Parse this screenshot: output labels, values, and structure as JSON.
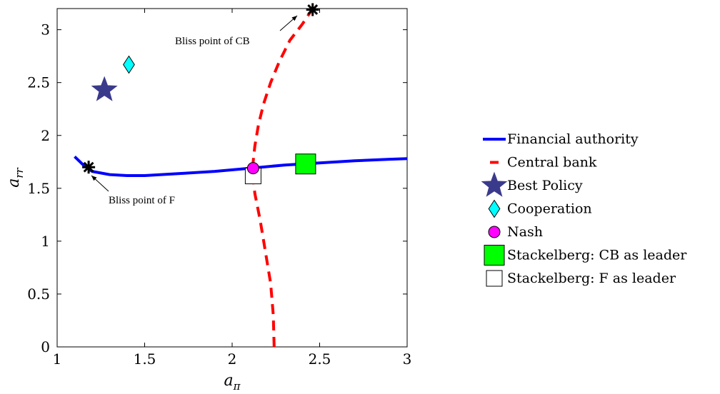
{
  "chart_data": {
    "type": "line",
    "title": "",
    "xlabel": "a",
    "xlabel_sub": "π",
    "ylabel": "a",
    "ylabel_sub": "rr",
    "xlim": [
      1,
      3
    ],
    "ylim": [
      0,
      3.2
    ],
    "xticks": [
      "1",
      "1.5",
      "2",
      "2.5",
      "3"
    ],
    "yticks": [
      "0",
      "0.5",
      "1",
      "1.5",
      "2",
      "2.5",
      "3"
    ],
    "grid": false,
    "legend_position": "right-outside",
    "series": [
      {
        "name": "Financial authority",
        "style": "solid",
        "color": "#0000ff",
        "x": [
          1.1,
          1.15,
          1.2,
          1.3,
          1.4,
          1.5,
          1.7,
          1.9,
          2.1,
          2.3,
          2.5,
          2.7,
          2.9,
          3.0
        ],
        "y": [
          1.8,
          1.72,
          1.66,
          1.63,
          1.62,
          1.62,
          1.64,
          1.66,
          1.69,
          1.72,
          1.74,
          1.76,
          1.775,
          1.78
        ]
      },
      {
        "name": "Central bank",
        "style": "dashed",
        "color": "#ff0000",
        "x": [
          2.24,
          2.235,
          2.22,
          2.19,
          2.16,
          2.13,
          2.12,
          2.12,
          2.13,
          2.15,
          2.18,
          2.22,
          2.27,
          2.33,
          2.4,
          2.46
        ],
        "y": [
          0.0,
          0.3,
          0.6,
          0.9,
          1.2,
          1.45,
          1.6,
          1.75,
          1.9,
          2.1,
          2.3,
          2.5,
          2.7,
          2.9,
          3.05,
          3.2
        ]
      }
    ],
    "points": [
      {
        "name": "Best Policy",
        "marker": "star",
        "color": "#3a3a8c",
        "x": 1.27,
        "y": 2.43
      },
      {
        "name": "Cooperation",
        "marker": "diamond",
        "color": "#00ffff",
        "x": 1.41,
        "y": 2.67
      },
      {
        "name": "Nash",
        "marker": "circle",
        "color": "#ff00ff",
        "x": 2.12,
        "y": 1.69
      },
      {
        "name": "Stackelberg: CB as leader",
        "marker": "square",
        "color": "#00ff00",
        "x": 2.42,
        "y": 1.73
      },
      {
        "name": "Stackelberg: F as leader",
        "marker": "square",
        "color": "#ffffff",
        "x": 2.12,
        "y": 1.63
      }
    ],
    "bliss_points": [
      {
        "label": "Bliss point of CB",
        "x": 2.46,
        "y": 3.19
      },
      {
        "label": "Bliss point of F",
        "x": 1.18,
        "y": 1.7
      }
    ]
  }
}
